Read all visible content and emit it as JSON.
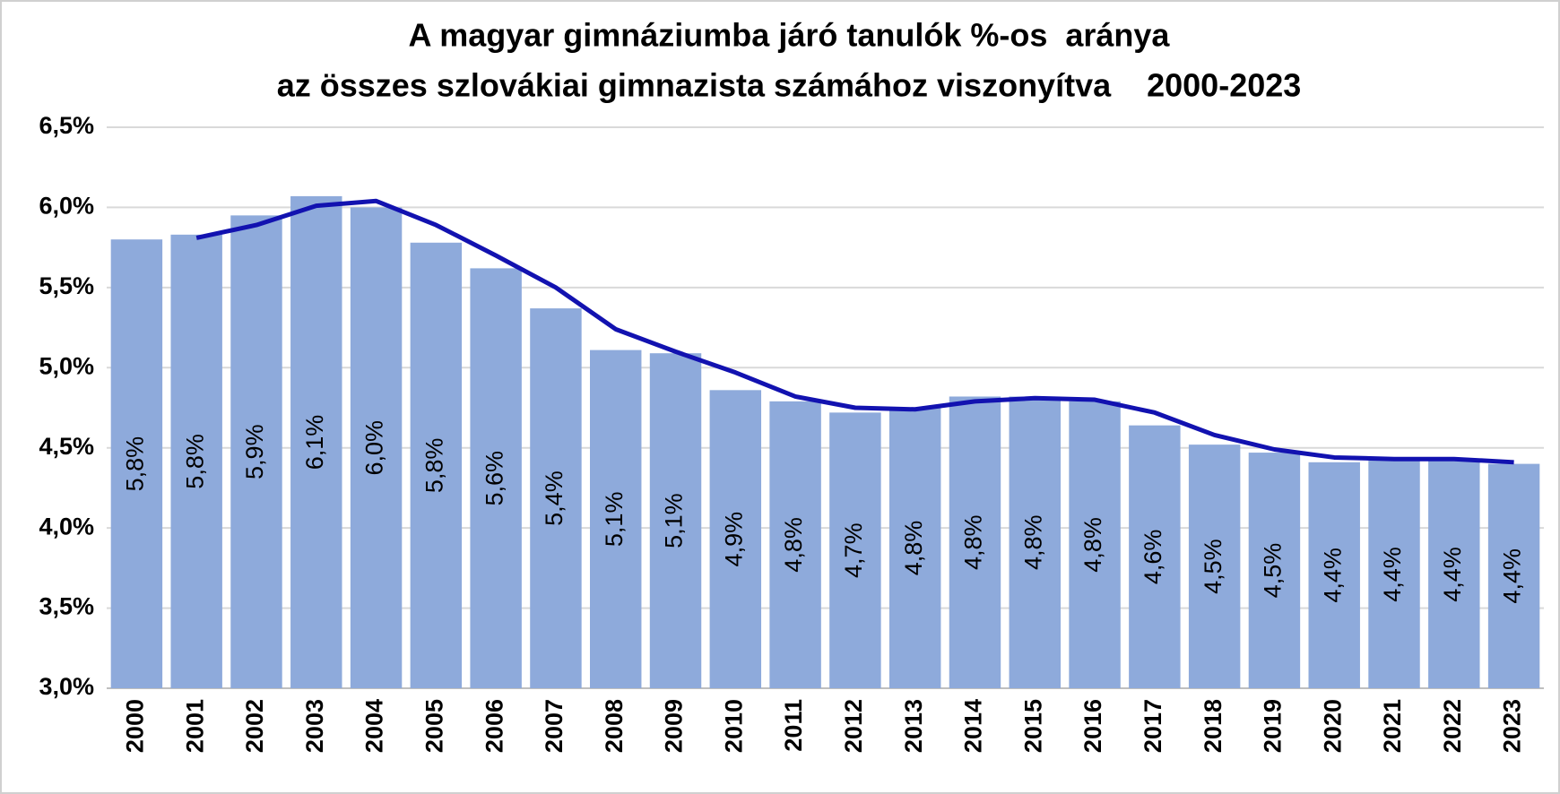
{
  "chart_data": {
    "type": "bar",
    "title": [
      "A magyar gimnáziumba járó tanulók %-os  aránya",
      "az összes szlovákiai gimnazista számához viszonyítva    2000-2023"
    ],
    "categories": [
      "2000",
      "2001",
      "2002",
      "2003",
      "2004",
      "2005",
      "2006",
      "2007",
      "2008",
      "2009",
      "2010",
      "2011",
      "2012",
      "2013",
      "2014",
      "2015",
      "2016",
      "2017",
      "2018",
      "2019",
      "2020",
      "2021",
      "2022",
      "2023"
    ],
    "series": [
      {
        "type": "bar",
        "color": "#8eaadb",
        "values": [
          5.8,
          5.83,
          5.95,
          6.07,
          6.0,
          5.78,
          5.62,
          5.37,
          5.11,
          5.09,
          4.86,
          4.79,
          4.72,
          4.75,
          4.82,
          4.82,
          4.79,
          4.64,
          4.52,
          4.47,
          4.41,
          4.42,
          4.42,
          4.4
        ],
        "value_labels": [
          "5,8%",
          "5,8%",
          "5,9%",
          "6,1%",
          "6,0%",
          "5,8%",
          "5,6%",
          "5,4%",
          "5,1%",
          "5,1%",
          "4,9%",
          "4,8%",
          "4,7%",
          "4,8%",
          "4,8%",
          "4,8%",
          "4,8%",
          "4,6%",
          "4,5%",
          "4,5%",
          "4,4%",
          "4,4%",
          "4,4%",
          "4,4%"
        ]
      },
      {
        "type": "line",
        "color": "#1212b0",
        "values": [
          null,
          5.81,
          5.89,
          6.01,
          6.04,
          5.89,
          5.7,
          5.5,
          5.24,
          5.1,
          4.97,
          4.82,
          4.75,
          4.74,
          4.79,
          4.81,
          4.8,
          4.72,
          4.58,
          4.49,
          4.44,
          4.43,
          4.43,
          4.41
        ]
      }
    ],
    "ylim": [
      3.0,
      6.5
    ],
    "yticks": [
      {
        "value": 3.0,
        "label": "3,0%"
      },
      {
        "value": 3.5,
        "label": "3,5%"
      },
      {
        "value": 4.0,
        "label": "4,0%"
      },
      {
        "value": 4.5,
        "label": "4,5%"
      },
      {
        "value": 5.0,
        "label": "5,0%"
      },
      {
        "value": 5.5,
        "label": "5,5%"
      },
      {
        "value": 6.0,
        "label": "6,0%"
      },
      {
        "value": 6.5,
        "label": "6,5%"
      }
    ],
    "grid": true
  }
}
